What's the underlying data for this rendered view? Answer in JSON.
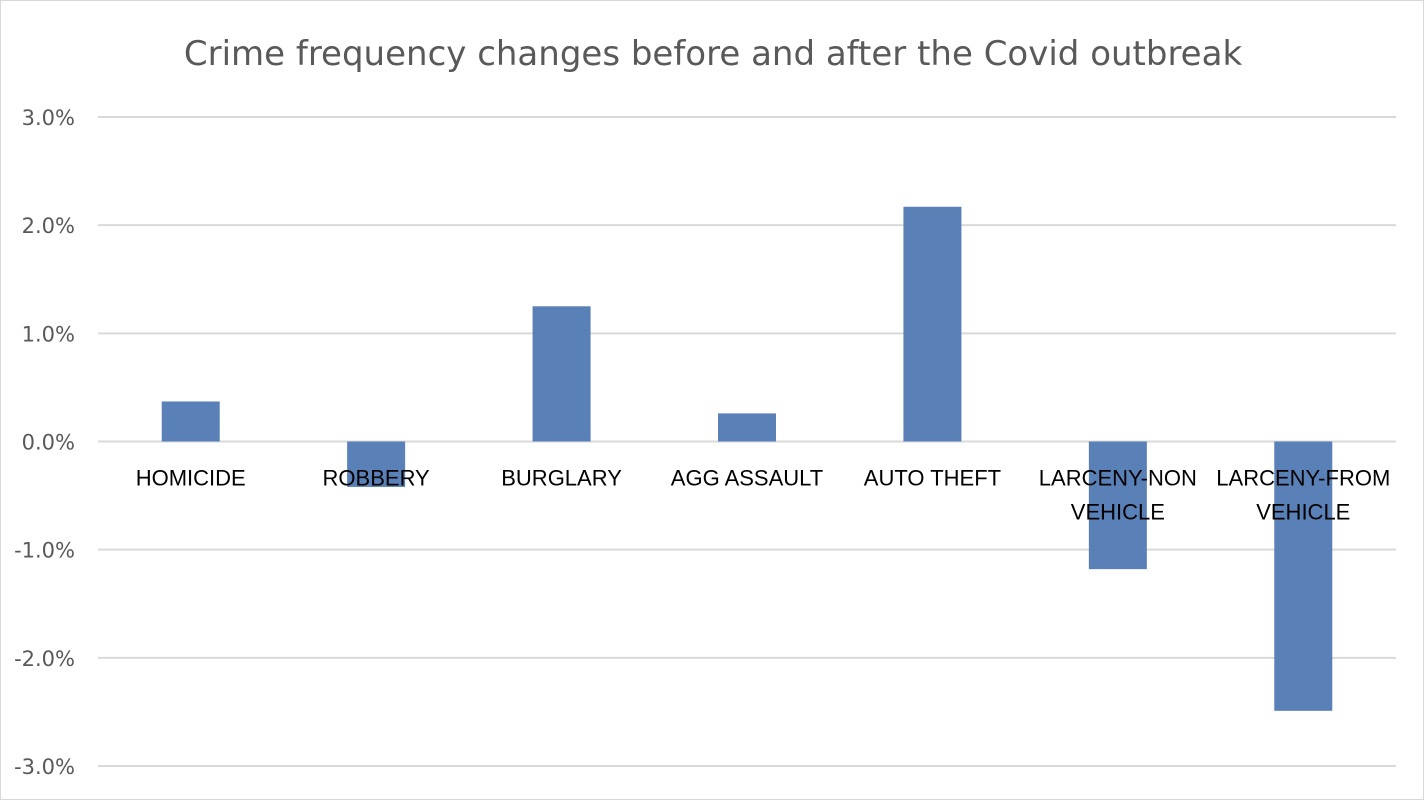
{
  "chart_data": {
    "type": "bar",
    "title": "Crime frequency changes before and after the Covid outbreak",
    "xlabel": "",
    "ylabel": "",
    "categories": [
      "HOMICIDE",
      "ROBBERY",
      "BURGLARY",
      "AGG ASSAULT",
      "AUTO THEFT",
      "LARCENY-NON VEHICLE",
      "LARCENY-FROM VEHICLE"
    ],
    "category_lines": [
      [
        "HOMICIDE"
      ],
      [
        "ROBBERY"
      ],
      [
        "BURGLARY"
      ],
      [
        "AGG ASSAULT"
      ],
      [
        "AUTO THEFT"
      ],
      [
        "LARCENY-NON",
        "VEHICLE"
      ],
      [
        "LARCENY-FROM",
        "VEHICLE"
      ]
    ],
    "values": [
      0.37,
      -0.42,
      1.25,
      0.26,
      2.17,
      -1.18,
      -2.49
    ],
    "ylim": [
      -3.0,
      3.0
    ],
    "yticks": [
      3.0,
      2.0,
      1.0,
      0.0,
      -1.0,
      -2.0,
      -3.0
    ],
    "ytick_labels": [
      "3.0%",
      "2.0%",
      "1.0%",
      "0.0%",
      "-1.0%",
      "-2.0%",
      "-3.0%"
    ],
    "grid": true,
    "legend": "none",
    "bar_color": "#5a80b8"
  }
}
